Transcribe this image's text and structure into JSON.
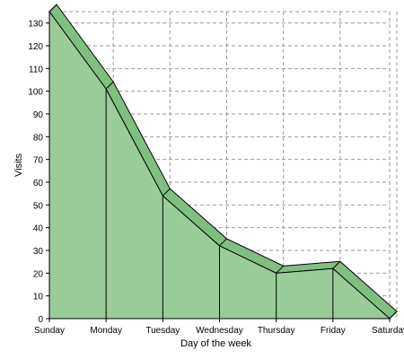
{
  "chart_data": {
    "type": "area",
    "categories": [
      "Sunday",
      "Monday",
      "Tuesday",
      "Wednesday",
      "Thursday",
      "Friday",
      "Saturday"
    ],
    "values": [
      135,
      101,
      54,
      32,
      20,
      22,
      0
    ],
    "xlabel": "Day of the week",
    "ylabel": "Visits",
    "ylim": [
      0,
      135
    ],
    "yticks": [
      "0",
      "10",
      "20",
      "30",
      "40",
      "50",
      "60",
      "70",
      "80",
      "90",
      "100",
      "110",
      "120",
      "130"
    ],
    "grid": true,
    "style_3d": true,
    "colors": {
      "area_fill": "#99cc99",
      "area_top": "#7fbf7f",
      "outline": "#000000",
      "grid": "#999999"
    }
  }
}
